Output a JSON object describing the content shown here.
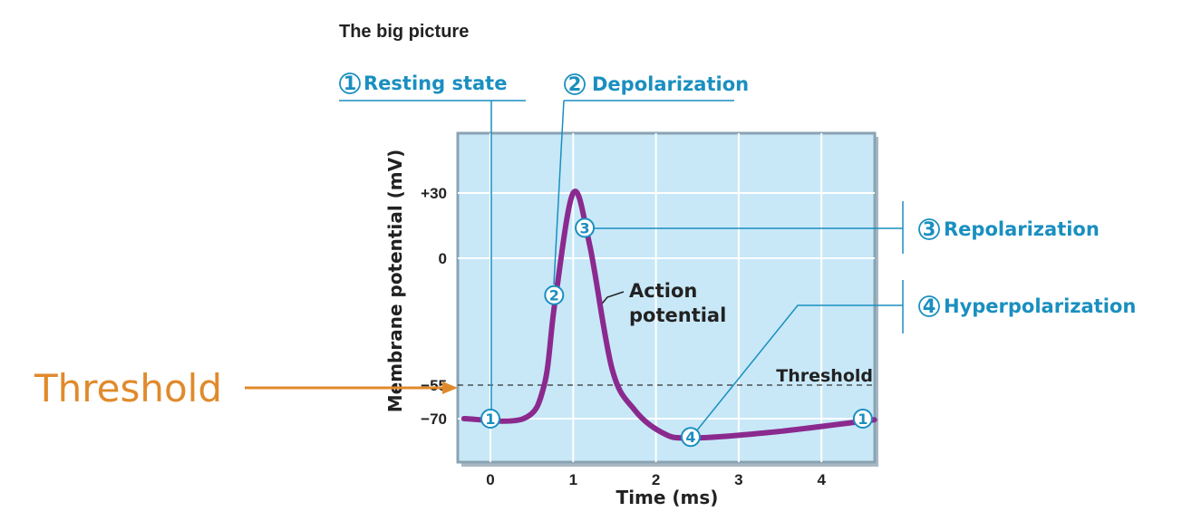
{
  "header": {
    "title": "The big picture"
  },
  "phases": {
    "resting": {
      "number": "1",
      "label": "Resting state"
    },
    "depolarization": {
      "number": "2",
      "label": "Depolarization"
    },
    "repolarization": {
      "number": "3",
      "label": "Repolarization"
    },
    "hyperpolarization": {
      "number": "4",
      "label": "Hyperpolarization"
    }
  },
  "annotations": {
    "curve_label_line1": "Action",
    "curve_label_line2": "potential",
    "threshold_label": "Threshold",
    "threshold_callout": "Threshold"
  },
  "colors": {
    "plot_background": "#c8e8f8",
    "curve": "#8b2a8e",
    "phase_label": "#1a8fc0",
    "callout": "#e08a2c"
  },
  "chart_data": {
    "type": "line",
    "xlabel": "Time (ms)",
    "ylabel": "Membrane potential (mV)",
    "xlim": [
      -0.4,
      4.65
    ],
    "ylim": [
      -89,
      57
    ],
    "grid": true,
    "x_ticks": [
      0,
      1,
      2,
      3,
      4
    ],
    "x_tick_labels": [
      "0",
      "1",
      "2",
      "3",
      "4"
    ],
    "y_ticks": [
      30,
      0,
      -55,
      -70
    ],
    "y_tick_labels": [
      "+30",
      "0",
      "−55",
      "−70"
    ],
    "threshold": -55,
    "series": [
      {
        "x": [
          -0.32,
          0.4,
          0.65,
          0.78,
          1.0,
          1.2,
          1.47,
          1.74,
          2.07,
          2.4,
          3.38,
          4.64
        ],
        "y": [
          -70,
          -70,
          -55,
          -19,
          30,
          6,
          -48,
          -66,
          -76,
          -78.5,
          -76,
          -70.5
        ]
      }
    ],
    "markers": [
      {
        "label": "1",
        "x": 0,
        "y": -70
      },
      {
        "label": "2",
        "x": 0.77,
        "y": -16
      },
      {
        "label": "3",
        "x": 1.14,
        "y": 14
      },
      {
        "label": "4",
        "x": 2.42,
        "y": -78
      },
      {
        "label": "1",
        "x": 4.5,
        "y": -70
      }
    ]
  }
}
